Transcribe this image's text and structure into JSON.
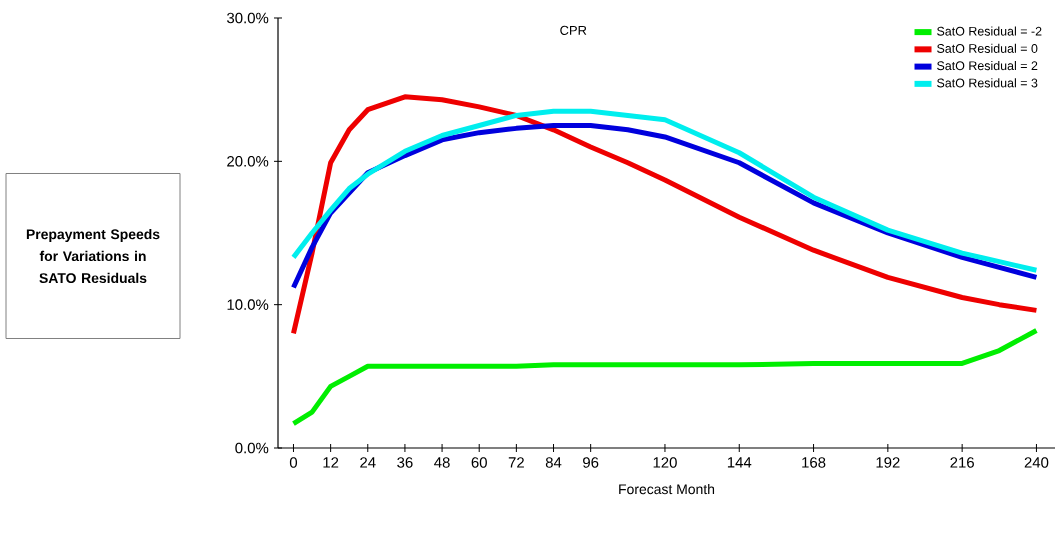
{
  "chart_data": {
    "type": "line",
    "title": "CPR",
    "xlabel": "Forecast Month",
    "ylabel": "Prepayment Speeds for Variations in SATO Residuals",
    "x": [
      0,
      6,
      12,
      18,
      24,
      36,
      48,
      60,
      72,
      84,
      96,
      108,
      120,
      144,
      168,
      192,
      216,
      228,
      240
    ],
    "series": [
      {
        "name": "SatO Residual = -2",
        "color": "#00ee00",
        "values": [
          1.7,
          2.5,
          4.3,
          5.0,
          5.7,
          5.7,
          5.7,
          5.7,
          5.7,
          5.8,
          5.8,
          5.8,
          5.8,
          5.8,
          5.9,
          5.9,
          5.9,
          6.8,
          8.2
        ]
      },
      {
        "name": "SatO Residual = 0",
        "color": "#ee0000",
        "values": [
          8.0,
          13.6,
          19.9,
          22.2,
          23.6,
          24.5,
          24.3,
          23.8,
          23.2,
          22.2,
          21.0,
          19.9,
          18.7,
          16.1,
          13.8,
          11.9,
          10.5,
          10.0,
          9.6
        ]
      },
      {
        "name": "SatO Residual = 2",
        "color": "#0000dd",
        "values": [
          11.2,
          14.0,
          16.4,
          17.8,
          19.2,
          20.4,
          21.5,
          22.0,
          22.3,
          22.5,
          22.5,
          22.2,
          21.7,
          19.9,
          17.1,
          15.0,
          13.3,
          12.6,
          11.9
        ]
      },
      {
        "name": "SatO Residual = 3",
        "color": "#00eeee",
        "values": [
          13.3,
          15.0,
          16.6,
          18.1,
          19.1,
          20.7,
          21.8,
          22.5,
          23.2,
          23.5,
          23.5,
          23.2,
          22.9,
          20.6,
          17.5,
          15.2,
          13.6,
          13.0,
          12.4
        ]
      }
    ],
    "xlim": [
      -5,
      246
    ],
    "ylim": [
      0,
      30
    ],
    "xticks": [
      0,
      12,
      24,
      36,
      48,
      60,
      72,
      84,
      96,
      120,
      144,
      168,
      192,
      216,
      240
    ],
    "yticks": [
      {
        "value": 0,
        "label": "0.0%"
      },
      {
        "value": 10,
        "label": "10.0%"
      },
      {
        "value": 20,
        "label": "20.0%"
      },
      {
        "value": 30,
        "label": "30.0%"
      }
    ],
    "legend": "top right"
  }
}
